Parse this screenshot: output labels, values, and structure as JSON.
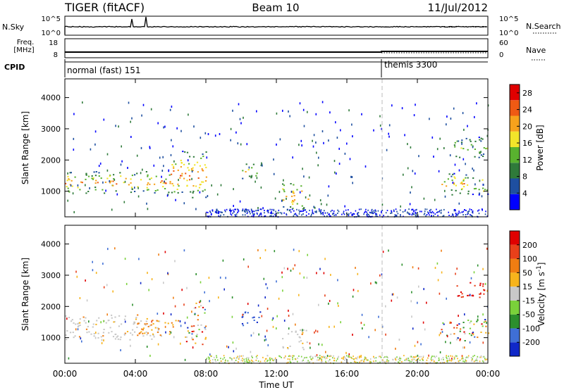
{
  "header": {
    "radar_title": "TIGER (fitACF)",
    "beam_title": "Beam 10",
    "date": "11/Jul/2012"
  },
  "top_panels": {
    "nsky_label": "N.Sky",
    "nsearch_label": "N.Search",
    "nsky_ticks": [
      "10^5",
      "10^0"
    ],
    "nsearch_ticks": [
      "10^5",
      "10^0"
    ],
    "freq_label_1": "Freq.",
    "freq_label_2": "[MHz]",
    "freq_ticks": [
      "18",
      "8"
    ],
    "nave_label": "Nave",
    "nave_ticks": [
      "60",
      "0"
    ],
    "cpid_label": "CPID",
    "cpid_entries": [
      {
        "label": "normal (fast) 151",
        "start": "00:00"
      },
      {
        "label": "themis 3300",
        "start": "18:00"
      }
    ]
  },
  "chart_data": [
    {
      "type": "heatmap",
      "title": "",
      "xlabel": "Time UT",
      "ylabel": "Slant Range [km]",
      "xlim": [
        0,
        24
      ],
      "ylim": [
        180,
        4600
      ],
      "xticks": [
        "00:00",
        "04:00",
        "08:00",
        "12:00",
        "16:00",
        "20:00",
        "00:00"
      ],
      "yticks": [
        1000,
        2000,
        3000,
        4000
      ],
      "colorbar": {
        "label": "Power [dB]",
        "ticks": [
          4,
          8,
          12,
          16,
          20,
          24,
          28
        ],
        "range": [
          0,
          30
        ],
        "colors": [
          "#0000ff",
          "#1e4fa0",
          "#2f7a3a",
          "#59b22f",
          "#f2e52a",
          "#f7a21c",
          "#ef5a14",
          "#e00000"
        ]
      },
      "regions": [
        {
          "t0": 0.0,
          "t1": 6.0,
          "r0": 950,
          "r1": 1650,
          "level": "medium-high"
        },
        {
          "t0": 6.0,
          "t1": 8.0,
          "r0": 800,
          "r1": 2300,
          "level": "high"
        },
        {
          "t0": 10.0,
          "t1": 11.2,
          "r0": 1400,
          "r1": 1900,
          "level": "medium"
        },
        {
          "t0": 12.3,
          "t1": 13.8,
          "r0": 400,
          "r1": 1300,
          "level": "high"
        },
        {
          "t0": 21.3,
          "t1": 24.0,
          "r0": 900,
          "r1": 1600,
          "level": "medium-high"
        },
        {
          "t0": 22.0,
          "t1": 24.0,
          "r0": 2100,
          "r1": 2800,
          "level": "low-medium"
        }
      ],
      "vertical_marker_time": 18.0
    },
    {
      "type": "heatmap",
      "title": "",
      "xlabel": "Time UT",
      "ylabel": "Slant Range [km]",
      "xlim": [
        0,
        24
      ],
      "ylim": [
        180,
        4600
      ],
      "xticks": [
        "00:00",
        "04:00",
        "08:00",
        "12:00",
        "16:00",
        "20:00",
        "00:00"
      ],
      "yticks": [
        1000,
        2000,
        3000,
        4000
      ],
      "colorbar": {
        "label": "Velocity [m s^-1]",
        "ticks": [
          200,
          100,
          50,
          15,
          -15,
          -50,
          -100,
          -200
        ],
        "colors": [
          "#1028c8",
          "#3f6fd6",
          "#2c8f2c",
          "#7ad13a",
          "#c8c8c8",
          "#f7b41c",
          "#f07d12",
          "#e8401a",
          "#e00000"
        ]
      },
      "regions": [
        {
          "t0": 0.0,
          "t1": 5.5,
          "r0": 950,
          "r1": 1750,
          "level": "ground-scatter"
        },
        {
          "t0": 4.0,
          "t1": 6.5,
          "r0": 1100,
          "r1": 1600,
          "level": "negative-small"
        },
        {
          "t0": 6.8,
          "t1": 8.0,
          "r0": 800,
          "r1": 2200,
          "level": "mixed"
        },
        {
          "t0": 10.0,
          "t1": 11.2,
          "r0": 1400,
          "r1": 1900,
          "level": "positive"
        },
        {
          "t0": 12.3,
          "t1": 13.8,
          "r0": 600,
          "r1": 1300,
          "level": "ground-scatter"
        },
        {
          "t0": 21.3,
          "t1": 24.0,
          "r0": 900,
          "r1": 1600,
          "level": "mixed"
        },
        {
          "t0": 22.2,
          "t1": 24.0,
          "r0": 2300,
          "r1": 2800,
          "level": "negative-large"
        }
      ],
      "vertical_marker_time": 18.0
    }
  ]
}
